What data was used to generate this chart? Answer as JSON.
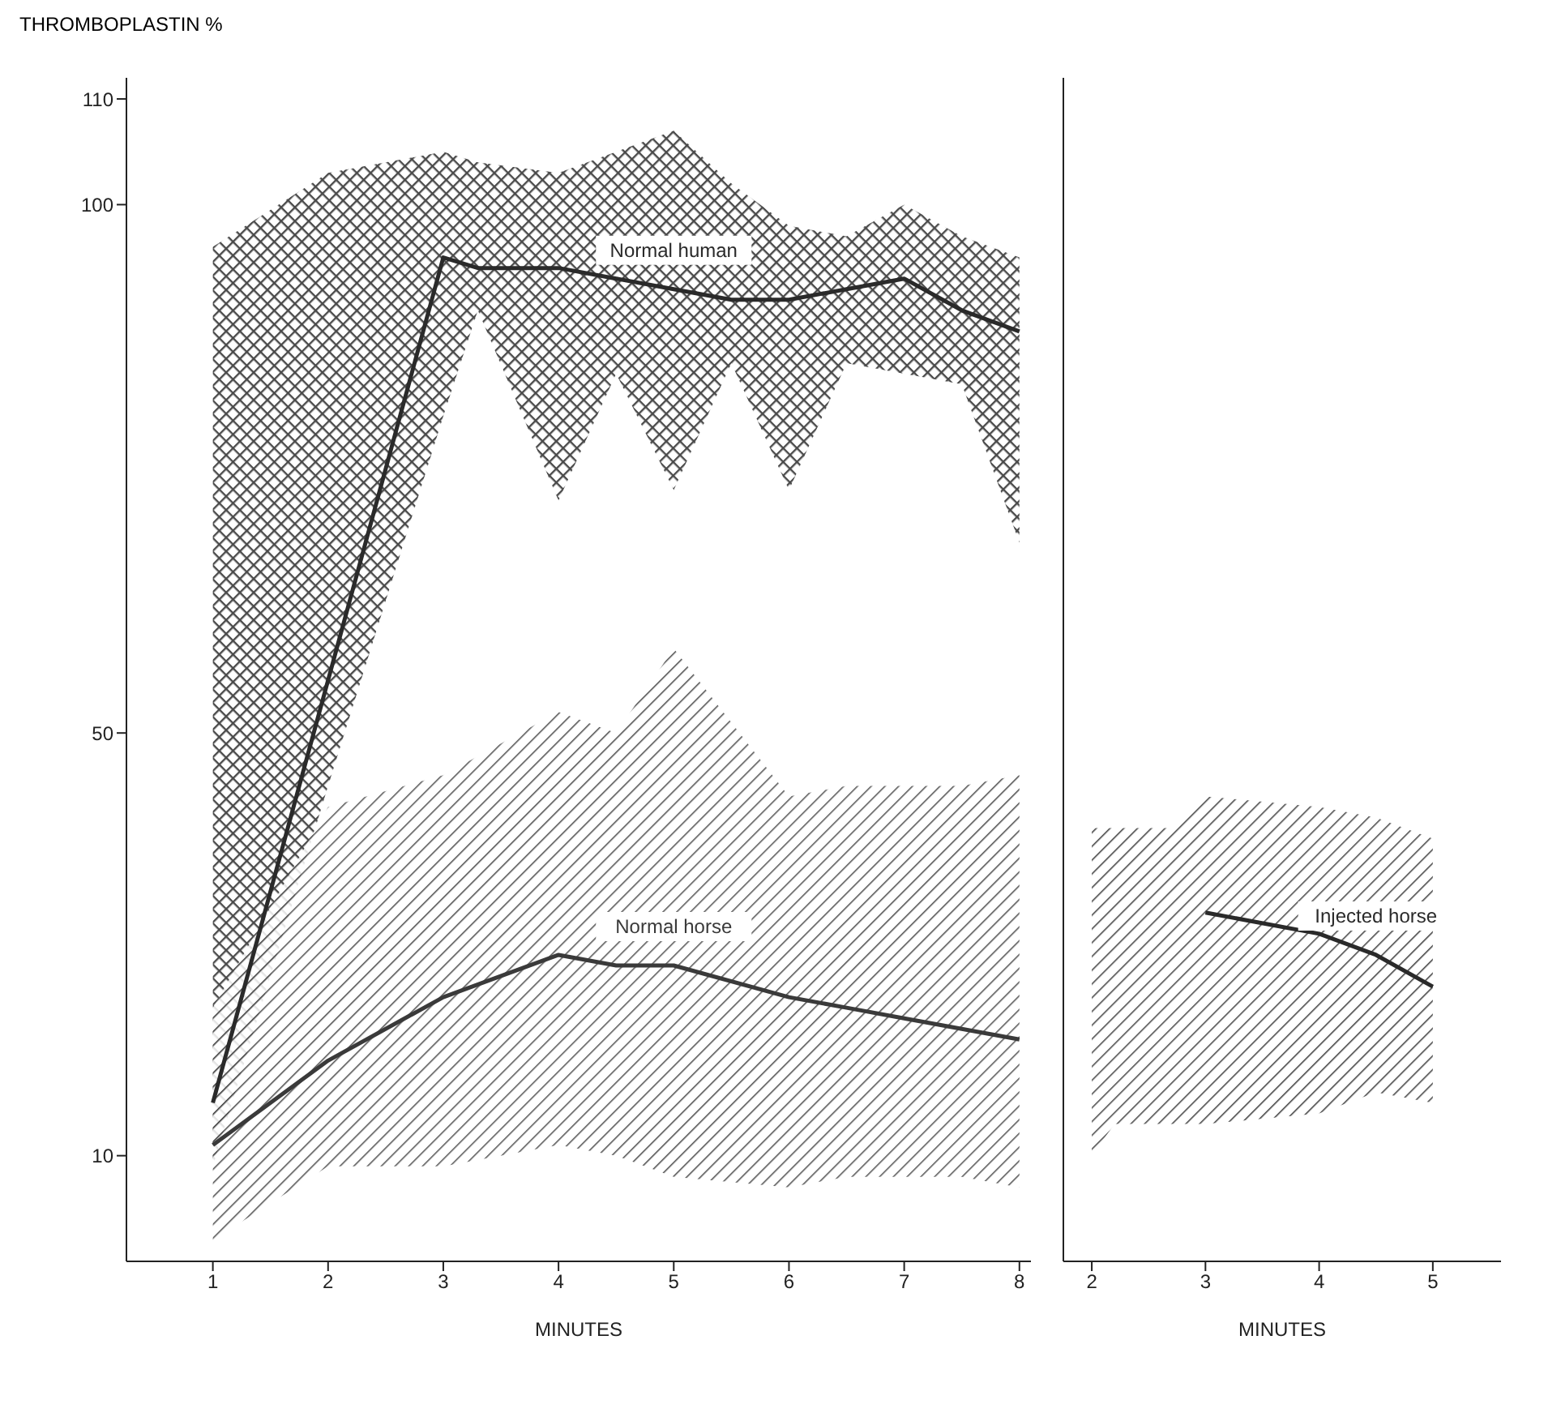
{
  "chart_data": [
    {
      "type": "line",
      "ylabel": "THROMBOPLASTIN %",
      "xlabel": "MINUTES",
      "xlim": [
        0.25,
        8.1
      ],
      "xticks": [
        1,
        2,
        3,
        4,
        5,
        6,
        7,
        8
      ],
      "ylim": [
        0,
        112
      ],
      "yticks": [
        10,
        50,
        100,
        110
      ],
      "marker": "none",
      "series": [
        {
          "name": "Normal human",
          "color": "#2a2a2a",
          "x": [
            1,
            2,
            3,
            3.3,
            4,
            4.5,
            5,
            5.5,
            6,
            6.5,
            7,
            7.5,
            8
          ],
          "values": [
            15,
            55,
            95,
            94,
            94,
            93,
            92,
            91,
            91,
            92,
            93,
            90,
            88
          ],
          "lower": [
            9,
            45,
            80,
            90,
            72,
            84,
            73,
            85,
            73,
            85,
            84,
            83,
            68
          ],
          "upper": [
            96,
            103,
            105,
            104,
            103,
            105,
            107,
            102,
            98,
            97,
            100,
            97,
            95
          ]
        },
        {
          "name": "Normal horse",
          "color": "#3a3a3a",
          "x": [
            1,
            2,
            3,
            4,
            4.5,
            5,
            6,
            6.5,
            7,
            7.5,
            8
          ],
          "values": [
            11,
            19,
            25,
            29,
            28,
            28,
            25,
            24,
            23,
            22,
            21
          ],
          "lower": [
            2,
            9,
            9,
            11,
            10,
            8,
            7,
            8,
            8,
            8,
            7
          ],
          "upper": [
            24,
            43,
            46,
            52,
            50,
            58,
            44,
            45,
            45,
            45,
            46
          ]
        }
      ]
    },
    {
      "type": "line",
      "xlabel": "MINUTES",
      "xlim": [
        1.75,
        5.6
      ],
      "xticks": [
        2,
        3,
        4,
        5
      ],
      "ylim": [
        0,
        112
      ],
      "yticks": [
        10,
        50,
        100,
        110
      ],
      "tick_labels": "x",
      "marker": "none",
      "series": [
        {
          "name": "Injected horse",
          "color": "#2a2a2a",
          "x": [
            2,
            2.2,
            2.7,
            3,
            4,
            4.5,
            5
          ],
          "values": [
            null,
            null,
            null,
            33,
            31,
            29,
            26
          ],
          "lower": [
            10,
            13,
            13,
            13,
            14,
            16,
            15
          ],
          "upper": [
            41,
            41,
            41,
            44,
            43,
            42,
            40
          ]
        }
      ]
    }
  ]
}
